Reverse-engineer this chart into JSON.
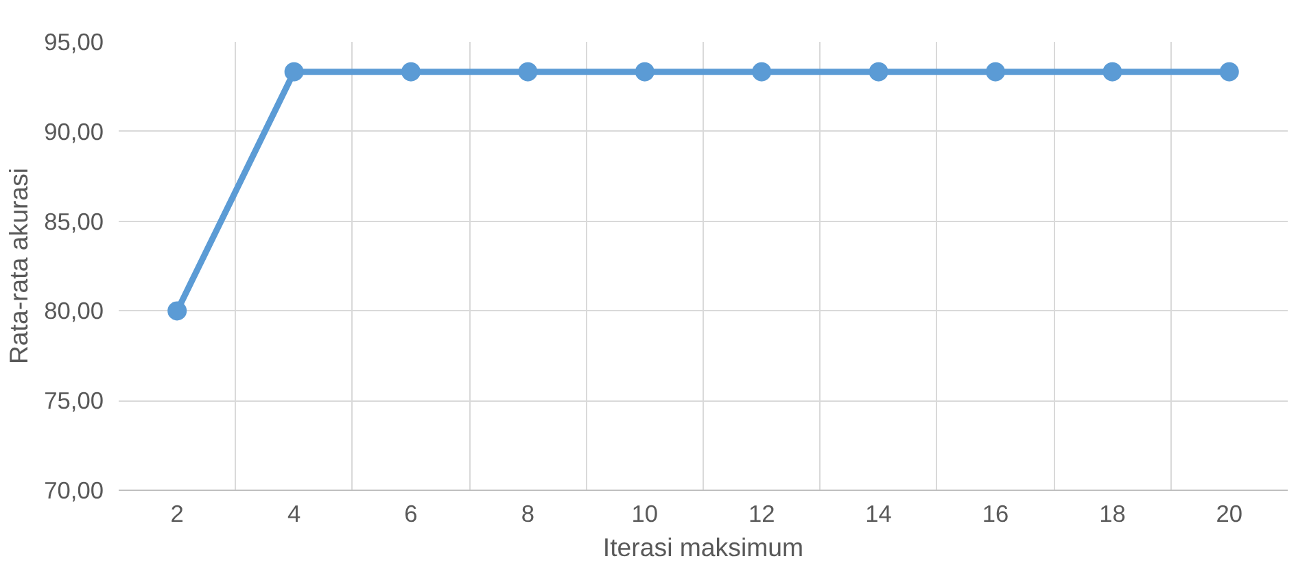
{
  "chart_data": {
    "type": "line",
    "xlabel": "Iterasi maksimum",
    "ylabel": "Rata-rata akurasi",
    "categories": [
      "2",
      "4",
      "6",
      "8",
      "10",
      "12",
      "14",
      "16",
      "18",
      "20"
    ],
    "series": [
      {
        "color": "#5b9bd5",
        "values": [
          80.0,
          93.33,
          93.33,
          93.33,
          93.33,
          93.33,
          93.33,
          93.33,
          93.33,
          93.33
        ]
      }
    ],
    "ylim": [
      70,
      95
    ],
    "yticks": [
      {
        "value": 70,
        "label": "70,00"
      },
      {
        "value": 75,
        "label": "75,00"
      },
      {
        "value": 80,
        "label": "80,00"
      },
      {
        "value": 85,
        "label": "85,00"
      },
      {
        "value": 90,
        "label": "90,00"
      },
      {
        "value": 95,
        "label": "95,00"
      }
    ],
    "grid": true,
    "marker": "circle",
    "line_style": "solid"
  }
}
